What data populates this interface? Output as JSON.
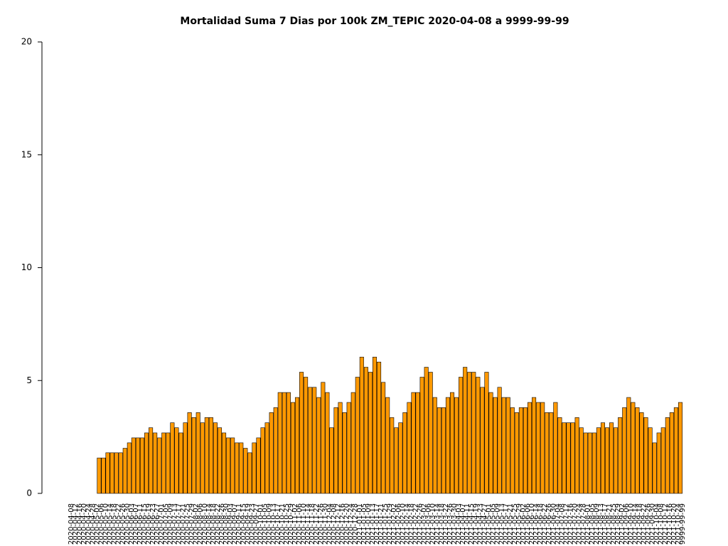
{
  "chart_data": {
    "type": "bar",
    "title": "Mortalidad Suma 7 Dias por 100k ZM_TEPIC 2020-04-08 a 9999-99-99",
    "categories": [
      "2020-04-08",
      "2020-04-12",
      "2020-04-16",
      "2020-04-20",
      "2020-04-24",
      "2020-04-28",
      "2020-05-02",
      "2020-05-06",
      "2020-05-10",
      "2020-05-14",
      "2020-05-18",
      "2020-05-22",
      "2020-05-26",
      "2020-05-30",
      "2020-06-03",
      "2020-06-07",
      "2020-06-11",
      "2020-06-15",
      "2020-06-19",
      "2020-06-23",
      "2020-06-27",
      "2020-07-01",
      "2020-07-05",
      "2020-07-09",
      "2020-07-13",
      "2020-07-17",
      "2020-07-21",
      "2020-07-25",
      "2020-07-29",
      "2020-08-02",
      "2020-08-06",
      "2020-08-10",
      "2020-08-14",
      "2020-08-18",
      "2020-08-22",
      "2020-08-26",
      "2020-08-30",
      "2020-09-03",
      "2020-09-07",
      "2020-09-11",
      "2020-09-15",
      "2020-09-19",
      "2020-09-23",
      "2020-09-27",
      "2020-10-01",
      "2020-10-05",
      "2020-10-09",
      "2020-10-13",
      "2020-10-17",
      "2020-10-21",
      "2020-10-25",
      "2020-10-29",
      "2020-11-02",
      "2020-11-06",
      "2020-11-10",
      "2020-11-14",
      "2020-11-18",
      "2020-11-22",
      "2020-11-26",
      "2020-11-30",
      "2020-12-04",
      "2020-12-08",
      "2020-12-12",
      "2020-12-16",
      "2020-12-20",
      "2020-12-24",
      "2020-12-28",
      "2021-01-01",
      "2021-01-05",
      "2021-01-09",
      "2021-01-13",
      "2021-01-17",
      "2021-01-21",
      "2021-01-25",
      "2021-01-29",
      "2021-02-02",
      "2021-02-06",
      "2021-02-10",
      "2021-02-14",
      "2021-02-18",
      "2021-02-22",
      "2021-02-26",
      "2021-03-02",
      "2021-03-06",
      "2021-03-10",
      "2021-03-14",
      "2021-03-18",
      "2021-03-22",
      "2021-03-26",
      "2021-03-30",
      "2021-04-03",
      "2021-04-07",
      "2021-04-11",
      "2021-04-15",
      "2021-04-19",
      "2021-04-23",
      "2021-04-27",
      "2021-05-01",
      "2021-05-05",
      "2021-05-09",
      "2021-05-13",
      "2021-05-17",
      "2021-05-21",
      "2021-05-25",
      "2021-05-29",
      "2021-06-02",
      "2021-06-06",
      "2021-06-10",
      "2021-06-14",
      "2021-06-18",
      "2021-06-22",
      "2021-06-26",
      "2021-06-30",
      "2021-07-04",
      "2021-07-08",
      "2021-07-12",
      "2021-07-16",
      "2021-07-20",
      "2021-07-24",
      "2021-07-28",
      "2021-08-01",
      "2021-08-05",
      "2021-08-09",
      "2021-08-13",
      "2021-08-17",
      "2021-08-21",
      "2021-08-25",
      "2021-08-29",
      "2021-09-02",
      "2021-09-06",
      "2021-09-10",
      "2021-09-14",
      "2021-09-18",
      "2021-09-22",
      "2021-09-26",
      "2021-09-30",
      "2021-10-04",
      "2021-10-08",
      "2021-10-12",
      "2021-10-16",
      "2021-10-20",
      "2021-10-24",
      "9999-99-99"
    ],
    "values": [
      0,
      0,
      0,
      0,
      0,
      0,
      0,
      1.57,
      1.57,
      1.8,
      1.8,
      1.8,
      1.8,
      2.0,
      2.24,
      2.46,
      2.46,
      2.46,
      2.68,
      2.91,
      2.68,
      2.46,
      2.68,
      2.68,
      3.13,
      2.91,
      2.68,
      3.13,
      3.58,
      3.36,
      3.58,
      3.13,
      3.36,
      3.36,
      3.13,
      2.91,
      2.68,
      2.46,
      2.46,
      2.24,
      2.24,
      2.0,
      1.8,
      2.24,
      2.46,
      2.91,
      3.13,
      3.58,
      3.8,
      4.47,
      4.47,
      4.47,
      4.03,
      4.25,
      5.37,
      5.15,
      4.7,
      4.7,
      4.25,
      4.92,
      4.47,
      2.91,
      3.8,
      4.03,
      3.58,
      4.03,
      4.47,
      5.15,
      6.04,
      5.59,
      5.37,
      6.04,
      5.82,
      4.92,
      4.25,
      3.36,
      2.91,
      3.13,
      3.58,
      4.03,
      4.47,
      4.47,
      5.15,
      5.59,
      5.37,
      4.25,
      3.8,
      3.8,
      4.25,
      4.47,
      4.25,
      5.15,
      5.59,
      5.37,
      5.37,
      5.15,
      4.7,
      5.37,
      4.47,
      4.25,
      4.7,
      4.25,
      4.25,
      3.8,
      3.58,
      3.8,
      3.8,
      4.03,
      4.25,
      4.03,
      4.03,
      3.58,
      3.58,
      4.03,
      3.36,
      3.13,
      3.13,
      3.13,
      3.36,
      2.91,
      2.68,
      2.68,
      2.68,
      2.91,
      3.13,
      2.91,
      3.13,
      2.91,
      3.36,
      3.8,
      4.25,
      4.03,
      3.8,
      3.58,
      3.36,
      2.91,
      2.24,
      2.68,
      2.91,
      3.36,
      3.58,
      3.8,
      4.03
    ],
    "color": "#ff9900",
    "ylim": [
      0,
      20
    ],
    "yticks": [
      0,
      5,
      10,
      15,
      20
    ],
    "grid": false
  }
}
